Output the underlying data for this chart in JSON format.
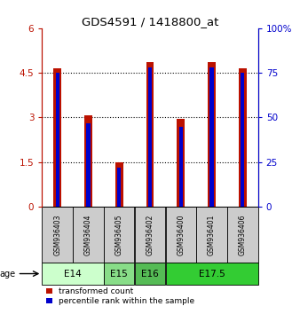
{
  "title": "GDS4591 / 1418800_at",
  "samples": [
    "GSM936403",
    "GSM936404",
    "GSM936405",
    "GSM936402",
    "GSM936400",
    "GSM936401",
    "GSM936406"
  ],
  "transformed_counts": [
    4.65,
    3.08,
    1.5,
    4.85,
    2.95,
    4.85,
    4.65
  ],
  "percentile_ranks": [
    75,
    47,
    22,
    78,
    45,
    78,
    75
  ],
  "age_groups": [
    {
      "label": "E14",
      "samples": [
        0,
        1
      ],
      "color": "#ccffcc"
    },
    {
      "label": "E15",
      "samples": [
        2
      ],
      "color": "#88dd88"
    },
    {
      "label": "E16",
      "samples": [
        3
      ],
      "color": "#55bb55"
    },
    {
      "label": "E17.5",
      "samples": [
        4,
        5,
        6
      ],
      "color": "#33cc33"
    }
  ],
  "ylim_left": [
    0,
    6
  ],
  "ylim_right": [
    0,
    100
  ],
  "yticks_left": [
    0,
    1.5,
    3,
    4.5,
    6
  ],
  "yticks_left_labels": [
    "0",
    "1.5",
    "3",
    "4.5",
    "6"
  ],
  "yticks_right": [
    0,
    25,
    50,
    75,
    100
  ],
  "yticks_right_labels": [
    "0",
    "25",
    "50",
    "75",
    "100%"
  ],
  "bar_color_red": "#bb1100",
  "bar_color_blue": "#0000cc",
  "bar_width": 0.25,
  "blue_bar_width": 0.12,
  "bg_color_samples": "#cccccc",
  "legend_red_label": "transformed count",
  "legend_blue_label": "percentile rank within the sample"
}
